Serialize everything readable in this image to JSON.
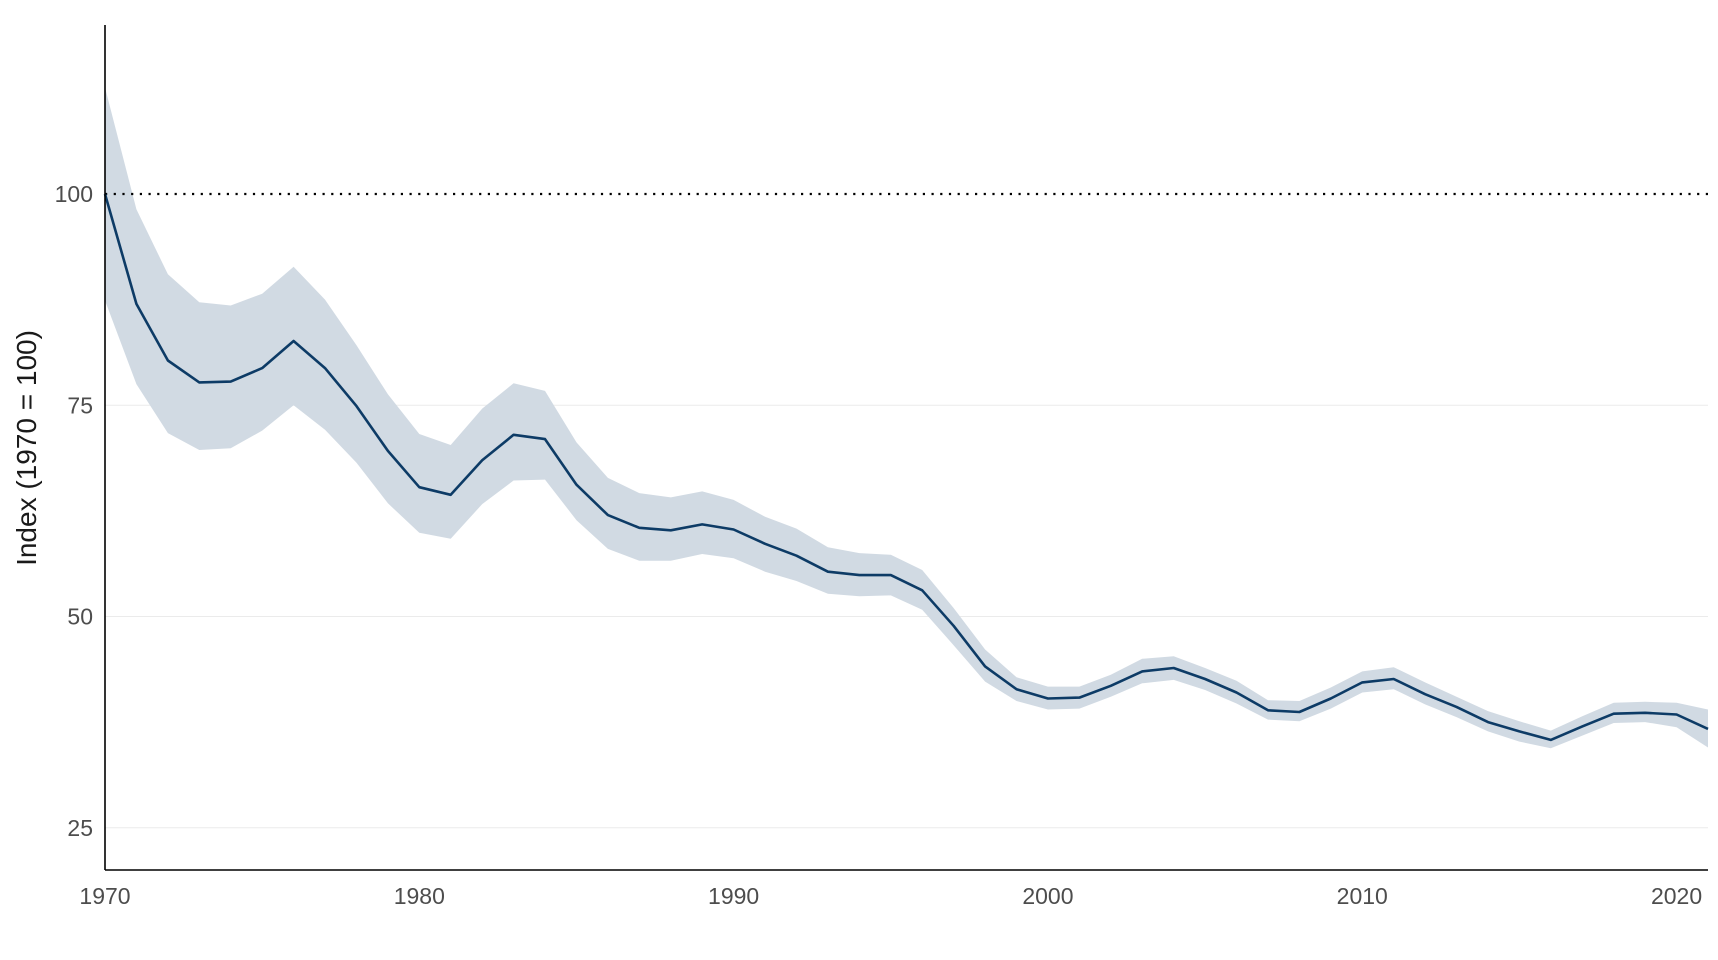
{
  "chart_data": {
    "type": "area",
    "title": "",
    "xlabel": "",
    "ylabel": "Index (1970 = 100)",
    "xlim": [
      1970,
      2021
    ],
    "ylim": [
      20,
      120
    ],
    "x_ticks": [
      1970,
      1980,
      1990,
      2000,
      2010,
      2020
    ],
    "x_tick_labels": [
      "1970",
      "1980",
      "1990",
      "2000",
      "2010",
      "2020"
    ],
    "y_ticks": [
      25,
      50,
      75,
      100
    ],
    "y_tick_labels": [
      "25",
      "50",
      "75",
      "100"
    ],
    "grid": "horizontal",
    "reference_line": 100,
    "line_color": "#0d3b66",
    "band_color": "#d1dae3",
    "x": [
      1970,
      1971,
      1972,
      1973,
      1974,
      1975,
      1976,
      1977,
      1978,
      1979,
      1980,
      1981,
      1982,
      1983,
      1984,
      1985,
      1986,
      1987,
      1988,
      1989,
      1990,
      1991,
      1992,
      1993,
      1994,
      1995,
      1996,
      1997,
      1998,
      1999,
      2000,
      2001,
      2002,
      2003,
      2004,
      2005,
      2006,
      2007,
      2008,
      2009,
      2010,
      2011,
      2012,
      2013,
      2014,
      2015,
      2016,
      2017,
      2018,
      2019,
      2020,
      2021
    ],
    "series": [
      {
        "values": [
          100.0,
          87.0,
          80.3,
          77.7,
          77.8,
          79.4,
          82.6,
          79.4,
          74.9,
          69.6,
          65.3,
          64.4,
          68.5,
          71.5,
          71.0,
          65.6,
          62.0,
          60.5,
          60.2,
          60.9,
          60.3,
          58.6,
          57.2,
          55.3,
          54.9,
          54.9,
          53.1,
          48.9,
          44.1,
          41.4,
          40.3,
          40.4,
          41.8,
          43.5,
          43.9,
          42.6,
          41.0,
          38.9,
          38.7,
          40.3,
          42.2,
          42.6,
          40.8,
          39.3,
          37.5,
          36.4,
          35.4,
          37.0,
          38.5,
          38.6,
          38.4,
          36.7
        ],
        "lower": [
          87.4,
          77.5,
          71.7,
          69.7,
          69.9,
          72.0,
          75.0,
          72.1,
          68.2,
          63.4,
          59.9,
          59.2,
          63.3,
          66.1,
          66.2,
          61.4,
          58.0,
          56.6,
          56.6,
          57.4,
          56.9,
          55.3,
          54.2,
          52.7,
          52.4,
          52.5,
          50.8,
          46.6,
          42.3,
          40.0,
          39.0,
          39.1,
          40.5,
          42.1,
          42.5,
          41.3,
          39.7,
          37.8,
          37.6,
          39.1,
          41.0,
          41.4,
          39.6,
          38.1,
          36.4,
          35.2,
          34.4,
          35.9,
          37.4,
          37.5,
          36.9,
          34.5
        ],
        "upper": [
          112.6,
          98.2,
          90.5,
          87.2,
          86.8,
          88.2,
          91.4,
          87.5,
          82.1,
          76.3,
          71.6,
          70.3,
          74.6,
          77.6,
          76.7,
          70.6,
          66.4,
          64.6,
          64.1,
          64.8,
          63.8,
          61.8,
          60.4,
          58.2,
          57.5,
          57.3,
          55.5,
          51.0,
          46.1,
          42.8,
          41.7,
          41.7,
          43.1,
          45.0,
          45.3,
          43.9,
          42.4,
          40.1,
          40.0,
          41.6,
          43.5,
          44.0,
          42.2,
          40.5,
          38.8,
          37.6,
          36.5,
          38.2,
          39.8,
          39.9,
          39.8,
          39.0
        ]
      }
    ]
  }
}
